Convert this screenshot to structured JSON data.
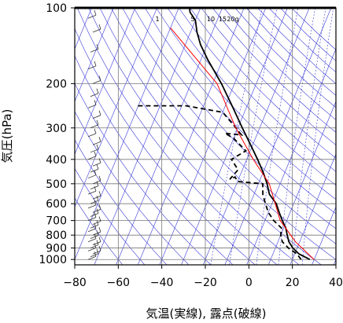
{
  "chart_data": {
    "type": "line",
    "subtype": "skew-T log-P thermodynamic diagram",
    "xlabel": "気温(実線), 露点(破線)",
    "ylabel": "気圧(hPa)",
    "xlim": [
      -80,
      40
    ],
    "ylim": [
      1050,
      100
    ],
    "y_scale": "log",
    "x_ticks": [
      -80,
      -60,
      -40,
      -20,
      0,
      20,
      40
    ],
    "y_ticks": [
      100,
      200,
      300,
      400,
      500,
      600,
      700,
      800,
      900,
      1000
    ],
    "isobar_gridlines": [
      200,
      300,
      400,
      500,
      600,
      700,
      800,
      900,
      1000
    ],
    "grid": true,
    "colors": {
      "temperature": "#000000",
      "dewpoint": "#000000",
      "reference_line": "#ff0000",
      "background_lines": "#3a3ad8"
    },
    "mixing_ratio_labels": [
      "1",
      "5",
      "10",
      "15",
      "20g"
    ],
    "series": [
      {
        "role": "temperature",
        "style": "solid",
        "points": [
          {
            "t": 28,
            "p": 1000
          },
          {
            "t": 22,
            "p": 950
          },
          {
            "t": 18,
            "p": 900
          },
          {
            "t": 15,
            "p": 850
          },
          {
            "t": 13,
            "p": 800
          },
          {
            "t": 11,
            "p": 750
          },
          {
            "t": 8,
            "p": 700
          },
          {
            "t": 5,
            "p": 650
          },
          {
            "t": 2,
            "p": 600
          },
          {
            "t": -3,
            "p": 550
          },
          {
            "t": -6,
            "p": 500
          },
          {
            "t": -10,
            "p": 450
          },
          {
            "t": -15,
            "p": 400
          },
          {
            "t": -21,
            "p": 350
          },
          {
            "t": -28,
            "p": 300
          },
          {
            "t": -36,
            "p": 250
          },
          {
            "t": -46,
            "p": 200
          },
          {
            "t": -57,
            "p": 160
          },
          {
            "t": -63,
            "p": 140
          },
          {
            "t": -67,
            "p": 125
          },
          {
            "t": -70,
            "p": 112
          },
          {
            "t": -74,
            "p": 104
          },
          {
            "t": -75,
            "p": 100
          }
        ]
      },
      {
        "role": "dewpoint",
        "style": "dashed",
        "points": [
          {
            "t": 24,
            "p": 1000
          },
          {
            "t": 21,
            "p": 950
          },
          {
            "t": 16,
            "p": 900
          },
          {
            "t": 12,
            "p": 850
          },
          {
            "t": 10,
            "p": 800
          },
          {
            "t": 9,
            "p": 750
          },
          {
            "t": 4,
            "p": 700
          },
          {
            "t": 0,
            "p": 650
          },
          {
            "t": -3,
            "p": 600
          },
          {
            "t": -6,
            "p": 550
          },
          {
            "t": -8,
            "p": 500
          },
          {
            "t": -20,
            "p": 490
          },
          {
            "t": -22,
            "p": 470
          },
          {
            "t": -24,
            "p": 480
          },
          {
            "t": -22,
            "p": 440
          },
          {
            "t": -27,
            "p": 400
          },
          {
            "t": -22,
            "p": 370
          },
          {
            "t": -30,
            "p": 330
          },
          {
            "t": -35,
            "p": 315
          },
          {
            "t": -27,
            "p": 320
          },
          {
            "t": -33,
            "p": 290
          },
          {
            "t": -40,
            "p": 260
          },
          {
            "t": -58,
            "p": 245
          },
          {
            "t": -68,
            "p": 245
          },
          {
            "t": -81,
            "p": 245
          }
        ]
      },
      {
        "role": "reference",
        "style": "solid",
        "points": [
          {
            "t": 30,
            "p": 1000
          },
          {
            "t": 18,
            "p": 850
          },
          {
            "t": 7,
            "p": 700
          },
          {
            "t": -5,
            "p": 500
          },
          {
            "t": -17,
            "p": 400
          },
          {
            "t": -31,
            "p": 300
          },
          {
            "t": -48,
            "p": 200
          },
          {
            "t": -80,
            "p": 120
          }
        ]
      }
    ],
    "wind_barb_pressures": [
      1000,
      975,
      950,
      925,
      900,
      875,
      850,
      825,
      800,
      775,
      750,
      725,
      700,
      675,
      650,
      625,
      600,
      575,
      550,
      525,
      500,
      475,
      450,
      425,
      400,
      375,
      350,
      325,
      300,
      275,
      250,
      225,
      200,
      175,
      150,
      125,
      110,
      100
    ]
  }
}
